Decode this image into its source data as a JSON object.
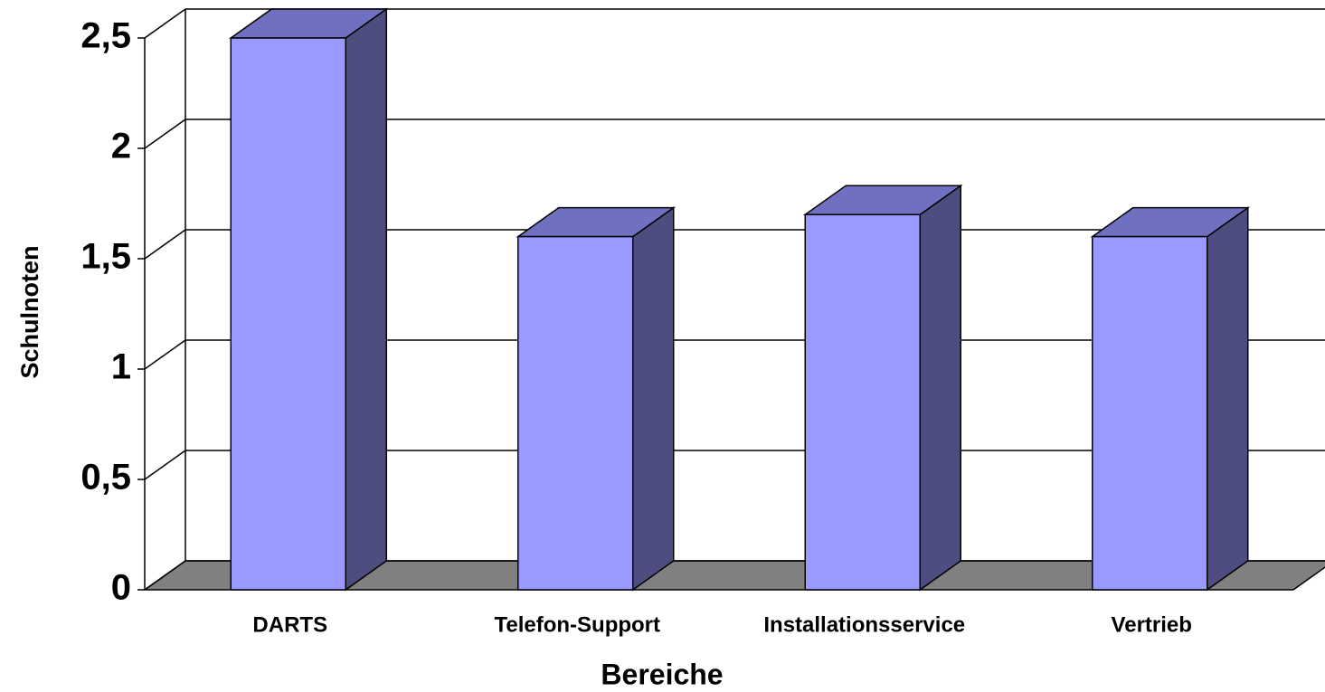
{
  "chart_data": {
    "type": "bar3d",
    "categories": [
      "DARTS",
      "Telefon-Support",
      "Installationsservice",
      "Vertrieb"
    ],
    "values": [
      2.5,
      1.6,
      1.7,
      1.6
    ],
    "color": "#9999ff",
    "top_color": "#7070c0",
    "side_color": "#4d4d80",
    "floor_color": "#808080",
    "xlabel": "Bereiche",
    "ylabel": "Schulnoten",
    "ylim": [
      0,
      2.5
    ],
    "yticks": [
      0,
      {
        "value": 0.5,
        "label": "0,5"
      },
      1,
      {
        "value": 1.5,
        "label": "1,5"
      },
      2,
      {
        "value": 2.5,
        "label": "2,5"
      }
    ],
    "grid": true
  }
}
